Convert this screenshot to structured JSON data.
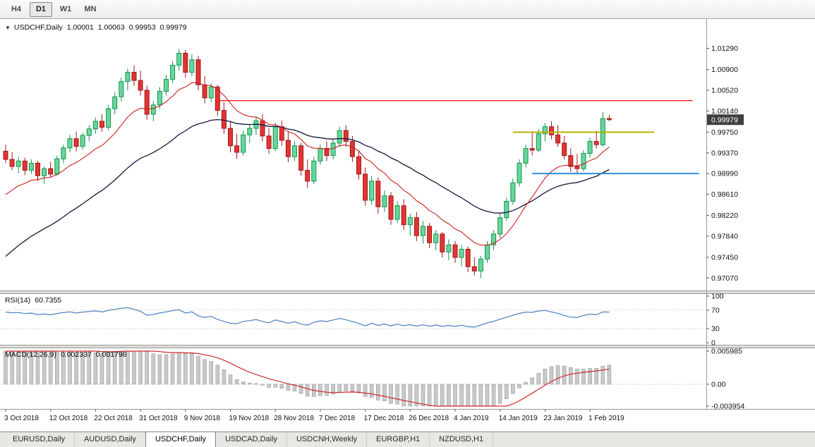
{
  "toolbar": {
    "timeframes": [
      {
        "label": "H4",
        "active": false
      },
      {
        "label": "D1",
        "active": true
      },
      {
        "label": "W1",
        "active": false
      },
      {
        "label": "MN",
        "active": false
      }
    ]
  },
  "chart": {
    "title": {
      "dropdown_icon": "▼",
      "symbol": "USDCHF,Daily",
      "open": "1.00001",
      "high": "1.00063",
      "low": "0.99953",
      "close": "0.99979"
    }
  },
  "chart_data": {
    "type": "candlestick",
    "symbol": "USDCHF",
    "timeframe": "Daily",
    "current_price": "0.99979",
    "price_axis": {
      "max": 1.0175,
      "min": 0.9692,
      "labels": [
        "1.01290",
        "1.00900",
        "1.00520",
        "1.00140",
        "0.99750",
        "0.99370",
        "0.98990",
        "0.98610",
        "0.98220",
        "0.97840",
        "0.97450",
        "0.97070"
      ]
    },
    "date_labels": [
      {
        "text": "3 Oct 2018",
        "bar": 0
      },
      {
        "text": "12 Oct 2018",
        "bar": 7
      },
      {
        "text": "22 Oct 2018",
        "bar": 14
      },
      {
        "text": "31 Oct 2018",
        "bar": 21
      },
      {
        "text": "9 Nov 2018",
        "bar": 28
      },
      {
        "text": "19 Nov 2018",
        "bar": 35
      },
      {
        "text": "28 Nov 2018",
        "bar": 42
      },
      {
        "text": "7 Dec 2018",
        "bar": 49
      },
      {
        "text": "17 Dec 2018",
        "bar": 56
      },
      {
        "text": "26 Dec 2018",
        "bar": 63
      },
      {
        "text": "4 Jan 2019",
        "bar": 70
      },
      {
        "text": "14 Jan 2019",
        "bar": 77
      },
      {
        "text": "23 Jan 2019",
        "bar": 84
      },
      {
        "text": "1 Feb 2019",
        "bar": 91
      }
    ],
    "colors": {
      "bull": "#69d69b",
      "bull_border": "#13934f",
      "bear": "#e33434",
      "bear_border": "#9e1a1a",
      "background": "#ffffff"
    },
    "ma_fast": {
      "period": 12,
      "color": "#cc1f1f"
    },
    "ma_slow": {
      "period": 32,
      "color": "#14143c"
    },
    "hlines": [
      {
        "name": "resistance-red",
        "price": 1.0033,
        "color": "#ff1f1f",
        "width": 1.4,
        "from_bar": 33,
        "to_bar": 107
      },
      {
        "name": "resistance-yellow",
        "price": 0.9975,
        "color": "#b3b300",
        "width": 2,
        "from_bar": 79,
        "to_bar": 101
      },
      {
        "name": "support-blue",
        "price": 0.9899,
        "color": "#2e8de0",
        "width": 2,
        "from_bar": 82,
        "to_bar": 108
      }
    ],
    "indicators": {
      "rsi": {
        "label": "RSI(14)",
        "value": "60.7355",
        "period": 14,
        "color": "#4a7fbf",
        "levels": [
          70,
          30
        ],
        "axis_labels": [
          "100",
          "70",
          "30",
          "0"
        ],
        "max": 100,
        "min": 0
      },
      "macd": {
        "label": "MACD(12,26,9)",
        "value_main": "0.002337",
        "value_signal": "0.001798",
        "fast": 12,
        "slow": 26,
        "signal": 9,
        "hist_color": "#c9c9c9",
        "hist_border": "#9b9b9b",
        "signal_color": "#cc2a2a",
        "axis": {
          "max": 0.005985,
          "min": -0.003954,
          "labels": [
            "0.005985",
            "0.00",
            "-0.003954"
          ]
        }
      }
    },
    "candles": [
      [
        0.994,
        0.9952,
        0.9918,
        0.9925
      ],
      [
        0.9925,
        0.9938,
        0.9905,
        0.9912
      ],
      [
        0.9912,
        0.993,
        0.99,
        0.9922
      ],
      [
        0.9922,
        0.9928,
        0.9896,
        0.9905
      ],
      [
        0.9905,
        0.9925,
        0.9898,
        0.9918
      ],
      [
        0.9918,
        0.9922,
        0.9885,
        0.9895
      ],
      [
        0.9895,
        0.9912,
        0.988,
        0.9908
      ],
      [
        0.9908,
        0.992,
        0.9892,
        0.9898
      ],
      [
        0.9898,
        0.9932,
        0.9895,
        0.9926
      ],
      [
        0.9926,
        0.9952,
        0.9918,
        0.9946
      ],
      [
        0.9946,
        0.997,
        0.9938,
        0.9963
      ],
      [
        0.9963,
        0.9976,
        0.994,
        0.9949
      ],
      [
        0.9949,
        0.9974,
        0.9943,
        0.9969
      ],
      [
        0.9969,
        0.9988,
        0.9958,
        0.9981
      ],
      [
        0.9981,
        1.0002,
        0.9972,
        0.9995
      ],
      [
        0.9995,
        1.0008,
        0.9976,
        0.9984
      ],
      [
        0.9984,
        1.0025,
        0.9978,
        1.0018
      ],
      [
        1.0018,
        1.0048,
        1.0008,
        1.004
      ],
      [
        1.004,
        1.0075,
        1.0032,
        1.0068
      ],
      [
        1.0068,
        1.0092,
        1.0052,
        1.0085
      ],
      [
        1.0085,
        1.0098,
        1.006,
        1.007
      ],
      [
        1.007,
        1.0088,
        1.0042,
        1.0052
      ],
      [
        1.0052,
        1.006,
        0.9998,
        1.0008
      ],
      [
        1.0008,
        1.0032,
        0.9995,
        1.0025
      ],
      [
        1.0025,
        1.0058,
        1.0018,
        1.005
      ],
      [
        1.005,
        1.008,
        1.0042,
        1.0072
      ],
      [
        1.0072,
        1.0105,
        1.0065,
        1.0098
      ],
      [
        1.0098,
        1.0128,
        1.0088,
        1.012
      ],
      [
        1.012,
        1.0126,
        1.0075,
        1.0085
      ],
      [
        1.0085,
        1.0118,
        1.0078,
        1.0108
      ],
      [
        1.0108,
        1.0115,
        1.0052,
        1.0062
      ],
      [
        1.0062,
        1.0078,
        1.0028,
        1.0038
      ],
      [
        1.0038,
        1.0065,
        1.003,
        1.0058
      ],
      [
        1.0058,
        1.0062,
        1.0005,
        1.0015
      ],
      [
        1.0015,
        1.003,
        0.9972,
        0.9982
      ],
      [
        0.9982,
        0.9996,
        0.9938,
        0.995
      ],
      [
        0.995,
        0.9972,
        0.9926,
        0.9938
      ],
      [
        0.9938,
        0.9978,
        0.9932,
        0.997
      ],
      [
        0.997,
        0.999,
        0.9955,
        0.9982
      ],
      [
        0.9982,
        1.0004,
        0.997,
        0.9996
      ],
      [
        0.9996,
        1.0008,
        0.9958,
        0.9968
      ],
      [
        0.9968,
        0.9982,
        0.9935,
        0.9945
      ],
      [
        0.9945,
        0.9992,
        0.994,
        0.9985
      ],
      [
        0.9985,
        0.9996,
        0.995,
        0.996
      ],
      [
        0.996,
        0.9975,
        0.992,
        0.993
      ],
      [
        0.993,
        0.9958,
        0.9922,
        0.995
      ],
      [
        0.995,
        0.9955,
        0.9895,
        0.9905
      ],
      [
        0.9905,
        0.9925,
        0.9872,
        0.9885
      ],
      [
        0.9885,
        0.993,
        0.988,
        0.9922
      ],
      [
        0.9922,
        0.9952,
        0.9915,
        0.9945
      ],
      [
        0.9945,
        0.9958,
        0.9922,
        0.9932
      ],
      [
        0.9932,
        0.9962,
        0.9925,
        0.9955
      ],
      [
        0.9955,
        0.9985,
        0.9948,
        0.9978
      ],
      [
        0.9978,
        0.9988,
        0.9948,
        0.9958
      ],
      [
        0.9958,
        0.9968,
        0.992,
        0.993
      ],
      [
        0.993,
        0.9942,
        0.9888,
        0.9898
      ],
      [
        0.9898,
        0.991,
        0.984,
        0.985
      ],
      [
        0.985,
        0.9895,
        0.9842,
        0.9885
      ],
      [
        0.9885,
        0.9892,
        0.9825,
        0.9838
      ],
      [
        0.9838,
        0.9868,
        0.9828,
        0.9858
      ],
      [
        0.9858,
        0.9865,
        0.9805,
        0.9815
      ],
      [
        0.9815,
        0.9848,
        0.9808,
        0.984
      ],
      [
        0.984,
        0.9852,
        0.9795,
        0.9805
      ],
      [
        0.9805,
        0.9825,
        0.9785,
        0.9818
      ],
      [
        0.9818,
        0.9828,
        0.9775,
        0.9785
      ],
      [
        0.9785,
        0.9812,
        0.977,
        0.9802
      ],
      [
        0.9802,
        0.9808,
        0.9762,
        0.9772
      ],
      [
        0.9772,
        0.9795,
        0.9758,
        0.9788
      ],
      [
        0.9788,
        0.9792,
        0.9745,
        0.9755
      ],
      [
        0.9755,
        0.9778,
        0.974,
        0.9768
      ],
      [
        0.9768,
        0.9775,
        0.9735,
        0.9745
      ],
      [
        0.9745,
        0.9768,
        0.9728,
        0.976
      ],
      [
        0.976,
        0.9765,
        0.9718,
        0.9728
      ],
      [
        0.9728,
        0.9745,
        0.9712,
        0.972
      ],
      [
        0.972,
        0.9748,
        0.9707,
        0.9742
      ],
      [
        0.9742,
        0.9775,
        0.9735,
        0.9768
      ],
      [
        0.9768,
        0.9795,
        0.9758,
        0.9788
      ],
      [
        0.9788,
        0.9825,
        0.978,
        0.9818
      ],
      [
        0.9818,
        0.9855,
        0.9812,
        0.9848
      ],
      [
        0.9848,
        0.989,
        0.9842,
        0.9882
      ],
      [
        0.9882,
        0.9925,
        0.9875,
        0.9918
      ],
      [
        0.9918,
        0.9952,
        0.991,
        0.9945
      ],
      [
        0.9945,
        0.9975,
        0.9932,
        0.9942
      ],
      [
        0.9942,
        0.998,
        0.9938,
        0.9972
      ],
      [
        0.9972,
        0.9992,
        0.9958,
        0.9985
      ],
      [
        0.9985,
        0.9995,
        0.9962,
        0.997
      ],
      [
        0.997,
        0.9988,
        0.9948,
        0.9955
      ],
      [
        0.9955,
        0.9968,
        0.9925,
        0.9932
      ],
      [
        0.9932,
        0.9945,
        0.9902,
        0.9912
      ],
      [
        0.9912,
        0.9935,
        0.9898,
        0.9908
      ],
      [
        0.9908,
        0.9942,
        0.9903,
        0.9936
      ],
      [
        0.9936,
        0.9965,
        0.9928,
        0.9958
      ],
      [
        0.9958,
        0.9978,
        0.9945,
        0.9952
      ],
      [
        0.9952,
        1.0012,
        0.9948,
        1.0
      ],
      [
        1.00001,
        1.00063,
        0.99953,
        0.99979
      ]
    ]
  },
  "tabs": [
    {
      "label": "EURUSD,Daily",
      "active": false
    },
    {
      "label": "AUDUSD,Daily",
      "active": false
    },
    {
      "label": "USDCHF,Daily",
      "active": true
    },
    {
      "label": "USDCAD,Daily",
      "active": false
    },
    {
      "label": "USDCNH,Weekly",
      "active": false
    },
    {
      "label": "EURGBP,H1",
      "active": false
    },
    {
      "label": "NZDUSD,H1",
      "active": false
    }
  ]
}
